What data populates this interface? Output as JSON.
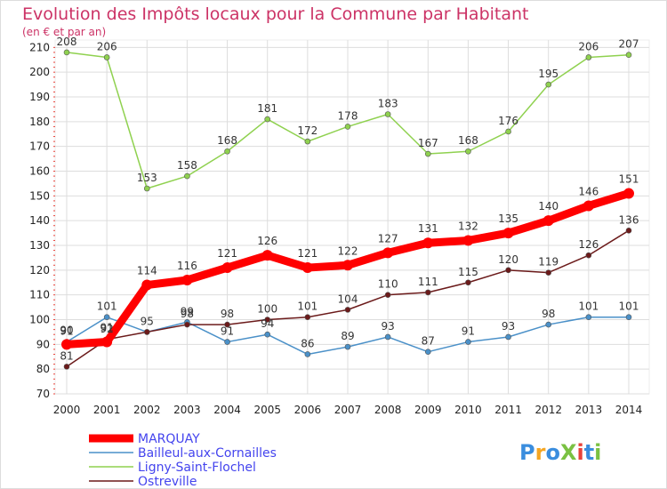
{
  "chart_data": {
    "type": "line",
    "title": "Evolution des Impôts locaux pour la Commune par Habitant",
    "subtitle": "(en € et par an)",
    "x": [
      "2000",
      "2001",
      "2002",
      "2003",
      "2004",
      "2005",
      "2006",
      "2007",
      "2008",
      "2009",
      "2010",
      "2011",
      "2012",
      "2013",
      "2014"
    ],
    "yticks": [
      70,
      80,
      90,
      100,
      110,
      120,
      130,
      140,
      150,
      160,
      170,
      180,
      190,
      200,
      210
    ],
    "ylim": [
      70,
      213
    ],
    "grid": true,
    "legend_position": "bottom-left",
    "series": [
      {
        "name": "MARQUAY",
        "color": "#ff0000",
        "emphasis": true,
        "values": [
          90,
          91,
          114,
          116,
          121,
          126,
          121,
          122,
          127,
          131,
          132,
          135,
          140,
          146,
          151
        ],
        "labels": [
          "90",
          "91",
          "114",
          "116",
          "121",
          "126",
          "121",
          "122",
          "127",
          "131",
          "132",
          "135",
          "140",
          "146",
          "151"
        ]
      },
      {
        "name": "Bailleul-aux-Cornailles",
        "color": "#4a90c8",
        "values": [
          91,
          101,
          95,
          99,
          91,
          94,
          86,
          89,
          93,
          87,
          91,
          93,
          98,
          101,
          101
        ],
        "labels": [
          "91",
          "101",
          "",
          "99",
          "91",
          "94",
          "86",
          "89",
          "93",
          "87",
          "91",
          "93",
          "98",
          "101",
          "101"
        ]
      },
      {
        "name": "Ligny-Saint-Flochel",
        "color": "#8fd14f",
        "values": [
          208,
          206,
          153,
          158,
          168,
          181,
          172,
          178,
          183,
          167,
          168,
          176,
          195,
          206,
          207
        ],
        "labels": [
          "208",
          "206",
          "153",
          "158",
          "168",
          "181",
          "172",
          "178",
          "183",
          "167",
          "168",
          "176",
          "195",
          "206",
          "207"
        ]
      },
      {
        "name": "Ostreville",
        "color": "#6b1a1a",
        "values": [
          81,
          92,
          95,
          98,
          98,
          100,
          101,
          104,
          110,
          111,
          115,
          120,
          119,
          126,
          136
        ],
        "labels": [
          "81",
          "92",
          "95",
          "98",
          "98",
          "100",
          "101",
          "104",
          "110",
          "111",
          "115",
          "120",
          "119",
          "126",
          "136"
        ]
      }
    ]
  },
  "branding": {
    "logo": "ProXiti",
    "logo_colors": [
      "#3a8dde",
      "#f5a623",
      "#3a8dde",
      "#7ac142",
      "#e8423a",
      "#3a8dde",
      "#7ac142"
    ]
  },
  "colors": {
    "title": "#cc3366",
    "axis_text": "#222222",
    "grid": "#dddddd",
    "frame": "#dddddd",
    "legend_text": "#4444ee",
    "label_text": "#333333",
    "axis_tick_red": "#e8423a"
  }
}
